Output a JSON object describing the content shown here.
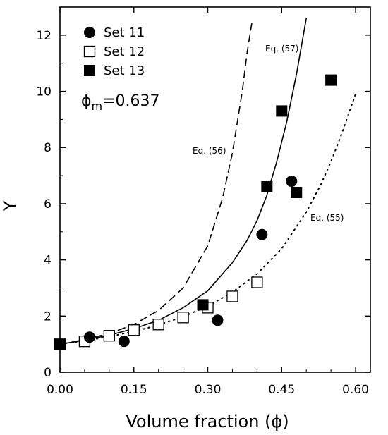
{
  "chart_data": {
    "type": "scatter",
    "xlabel": "Volume fraction (ϕ)",
    "ylabel": "Y",
    "xlim": [
      0,
      0.63
    ],
    "ylim": [
      0,
      13
    ],
    "x_ticks": [
      "0.00",
      "0.15",
      "0.30",
      "0.45",
      "0.60"
    ],
    "y_ticks": [
      "0",
      "2",
      "4",
      "6",
      "8",
      "10",
      "12"
    ],
    "x_tick_values": [
      0,
      0.15,
      0.3,
      0.45,
      0.6
    ],
    "y_tick_values": [
      0,
      2,
      4,
      6,
      8,
      10,
      12
    ],
    "grid": false,
    "legend_position": "top-left",
    "annotation_phi_symbol": "ϕ",
    "annotation_phi_sub": "m",
    "annotation_phi_value": "=0.637",
    "series": [
      {
        "name": "Set 11",
        "marker": "filled-circle",
        "x": [
          0.0,
          0.06,
          0.13,
          0.32,
          0.41,
          0.47
        ],
        "y": [
          1.0,
          1.25,
          1.1,
          1.85,
          4.9,
          6.8
        ]
      },
      {
        "name": "Set 12",
        "marker": "open-square",
        "x": [
          0.05,
          0.1,
          0.15,
          0.2,
          0.25,
          0.3,
          0.35,
          0.4
        ],
        "y": [
          1.1,
          1.3,
          1.5,
          1.7,
          1.95,
          2.3,
          2.7,
          3.2
        ]
      },
      {
        "name": "Set 13",
        "marker": "filled-square",
        "x": [
          0.0,
          0.29,
          0.42,
          0.45,
          0.48,
          0.55
        ],
        "y": [
          1.0,
          2.4,
          6.6,
          9.3,
          6.4,
          10.4
        ]
      }
    ],
    "curves": [
      {
        "label": "Eq. (56)",
        "style": "dashed",
        "x": [
          0.0,
          0.05,
          0.1,
          0.15,
          0.2,
          0.25,
          0.3,
          0.33,
          0.35,
          0.37,
          0.38,
          0.39
        ],
        "y": [
          1.0,
          1.16,
          1.38,
          1.7,
          2.2,
          3.0,
          4.5,
          6.2,
          7.8,
          10.0,
          11.4,
          12.5
        ]
      },
      {
        "label": "Eq. (57)",
        "style": "solid",
        "x": [
          0.0,
          0.05,
          0.1,
          0.15,
          0.2,
          0.25,
          0.3,
          0.35,
          0.38,
          0.4,
          0.42,
          0.44,
          0.46,
          0.48,
          0.49,
          0.5
        ],
        "y": [
          1.0,
          1.14,
          1.32,
          1.55,
          1.85,
          2.3,
          2.9,
          3.9,
          4.7,
          5.4,
          6.3,
          7.5,
          8.9,
          10.6,
          11.6,
          12.6
        ]
      },
      {
        "label": "Eq. (55)",
        "style": "dotted",
        "x": [
          0.0,
          0.05,
          0.1,
          0.15,
          0.2,
          0.25,
          0.3,
          0.35,
          0.4,
          0.45,
          0.5,
          0.53,
          0.55,
          0.57,
          0.6
        ],
        "y": [
          1.0,
          1.12,
          1.27,
          1.45,
          1.68,
          1.98,
          2.35,
          2.85,
          3.5,
          4.4,
          5.7,
          6.7,
          7.5,
          8.4,
          9.9
        ]
      }
    ]
  }
}
